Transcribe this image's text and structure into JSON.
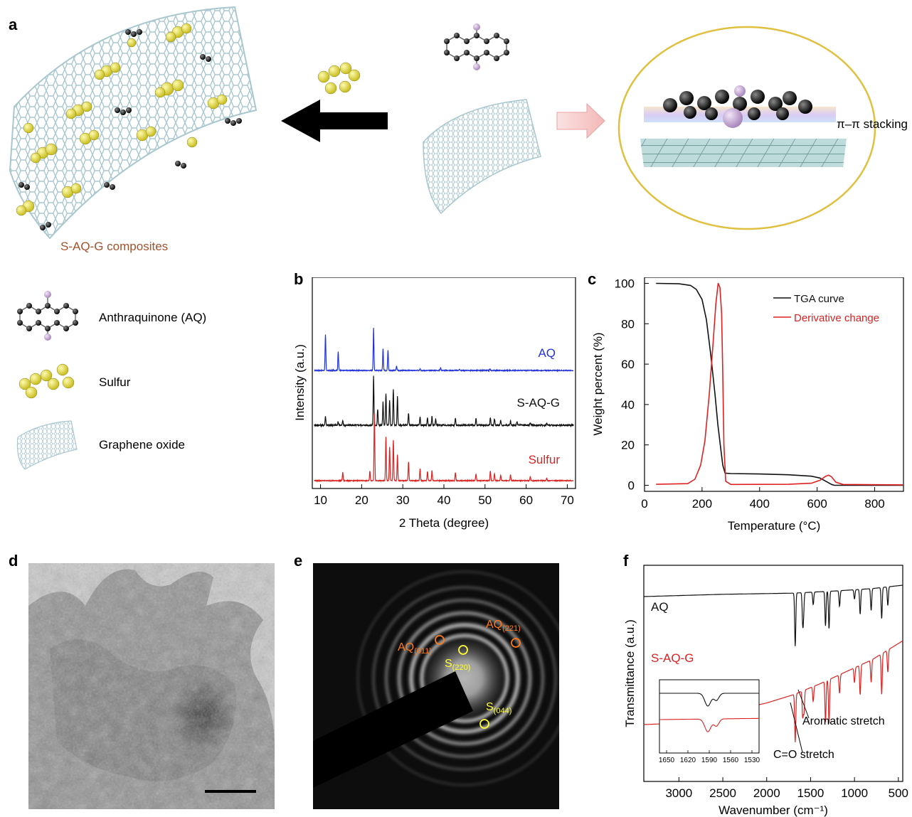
{
  "panel_letters": {
    "a": "a",
    "b": "b",
    "c": "c",
    "d": "d",
    "e": "e",
    "f": "f"
  },
  "panel_a": {
    "composite_label": "S-AQ-G composites",
    "stacking_label": "π–π stacking",
    "legend": [
      {
        "icon": "anthraquinone-molecule-icon",
        "label": "Anthraquinone (AQ)"
      },
      {
        "icon": "sulfur-molecule-icon",
        "label": "Sulfur"
      },
      {
        "icon": "graphene-oxide-sheet-icon",
        "label": "Graphene oxide"
      }
    ],
    "colors": {
      "sulfur": "#e8e04a",
      "carbon": "#1a1a1a",
      "oxygen": "#c9a8d8",
      "graphene": "#a9c7cf",
      "composite_label": "#a0522d",
      "ellipse": "#e0c040"
    }
  },
  "chart_data": [
    {
      "id": "b",
      "type": "line",
      "title": "",
      "xlabel": "2 Theta (degree)",
      "ylabel": "Intensity (a.u.)",
      "xlim": [
        8,
        72
      ],
      "xticks": [
        10,
        20,
        30,
        40,
        50,
        60,
        70
      ],
      "series": [
        {
          "name": "AQ",
          "color": "#2233dd",
          "peaks": [
            [
              11.2,
              50
            ],
            [
              14.3,
              26
            ],
            [
              22.9,
              60
            ],
            [
              25.2,
              30
            ],
            [
              26.4,
              28
            ],
            [
              28.5,
              6
            ],
            [
              34.2,
              3
            ],
            [
              39.2,
              4
            ],
            [
              43.8,
              2
            ],
            [
              51.2,
              2
            ]
          ]
        },
        {
          "name": "S-AQ-G",
          "color": "#111111",
          "peaks": [
            [
              11.2,
              25
            ],
            [
              14.3,
              10
            ],
            [
              15.4,
              12
            ],
            [
              22.9,
              140
            ],
            [
              23.9,
              45
            ],
            [
              25.2,
              65
            ],
            [
              25.9,
              90
            ],
            [
              26.8,
              70
            ],
            [
              27.7,
              100
            ],
            [
              28.7,
              80
            ],
            [
              31.4,
              35
            ],
            [
              34.2,
              25
            ],
            [
              36.0,
              20
            ],
            [
              37.1,
              25
            ],
            [
              38.0,
              18
            ],
            [
              42.8,
              20
            ],
            [
              47.8,
              18
            ],
            [
              51.3,
              22
            ],
            [
              52.3,
              18
            ],
            [
              53.8,
              14
            ],
            [
              56.2,
              12
            ],
            [
              57.8,
              10
            ],
            [
              61.0,
              8
            ],
            [
              65.0,
              6
            ]
          ]
        },
        {
          "name": "Sulfur",
          "color": "#dd2222",
          "peaks": [
            [
              15.4,
              12
            ],
            [
              22.0,
              14
            ],
            [
              23.1,
              100
            ],
            [
              25.9,
              65
            ],
            [
              26.8,
              50
            ],
            [
              27.7,
              60
            ],
            [
              28.7,
              38
            ],
            [
              31.4,
              28
            ],
            [
              34.2,
              18
            ],
            [
              36.0,
              14
            ],
            [
              37.1,
              15
            ],
            [
              42.8,
              12
            ],
            [
              47.8,
              10
            ],
            [
              51.3,
              14
            ],
            [
              52.3,
              10
            ],
            [
              53.8,
              8
            ],
            [
              56.2,
              9
            ],
            [
              61.0,
              6
            ],
            [
              65.0,
              4
            ]
          ]
        }
      ]
    },
    {
      "id": "c",
      "type": "line",
      "title": "",
      "xlabel": "Temperature (°C)",
      "ylabel": "Weight percent (%)",
      "xlim": [
        0,
        900
      ],
      "ylim": [
        -3,
        103
      ],
      "xticks": [
        0,
        200,
        400,
        600,
        800
      ],
      "yticks": [
        0,
        20,
        40,
        60,
        80,
        100
      ],
      "legend_position": "top-right",
      "series": [
        {
          "name": "TGA curve",
          "color": "#111111",
          "x": [
            40,
            120,
            160,
            180,
            200,
            215,
            230,
            245,
            255,
            265,
            272,
            280,
            300,
            400,
            500,
            580,
            610,
            630,
            650,
            660,
            900
          ],
          "y": [
            100,
            99.8,
            99,
            97,
            92,
            82,
            65,
            45,
            30,
            18,
            10,
            6,
            5.8,
            5.6,
            5.2,
            4.5,
            3.6,
            2.0,
            0.4,
            0,
            0
          ]
        },
        {
          "name": "Derivative change",
          "color": "#dd2222",
          "x": [
            40,
            150,
            175,
            195,
            210,
            225,
            238,
            248,
            256,
            262,
            268,
            272,
            276,
            282,
            300,
            500,
            580,
            610,
            630,
            640,
            650,
            665,
            690,
            900
          ],
          "y": [
            0.5,
            0.8,
            3,
            10,
            22,
            45,
            70,
            90,
            100,
            98,
            85,
            55,
            20,
            2,
            0.4,
            0.5,
            1,
            2.5,
            4.5,
            5,
            4.2,
            1.5,
            0.4,
            0.2
          ]
        }
      ]
    },
    {
      "id": "f",
      "type": "line",
      "title": "",
      "xlabel": "Wavenumber (cm⁻¹)",
      "ylabel": "Transmittance (a.u.)",
      "xlim": [
        3400,
        450
      ],
      "x_reversed": true,
      "xticks": [
        3000,
        2500,
        2000,
        1500,
        1000,
        500
      ],
      "series": [
        {
          "name": "AQ",
          "color": "#111111",
          "base": [
            [
              3400,
              0.82
            ],
            [
              2500,
              0.84
            ],
            [
              1700,
              0.85
            ],
            [
              1200,
              0.87
            ],
            [
              800,
              0.89
            ],
            [
              450,
              0.92
            ]
          ],
          "dips": [
            [
              1675,
              0.85
            ],
            [
              1590,
              0.45
            ],
            [
              1580,
              0.3
            ],
            [
              1470,
              0.2
            ],
            [
              1330,
              0.55
            ],
            [
              1290,
              0.6
            ],
            [
              1170,
              0.25
            ],
            [
              1000,
              0.15
            ],
            [
              935,
              0.4
            ],
            [
              810,
              0.35
            ],
            [
              690,
              0.5
            ],
            [
              620,
              0.3
            ]
          ]
        },
        {
          "name": "S-AQ-G",
          "color": "#dd2222",
          "base": [
            [
              3400,
              0.36
            ],
            [
              3000,
              0.37
            ],
            [
              2700,
              0.4
            ],
            [
              2400,
              0.46
            ],
            [
              2000,
              0.52
            ],
            [
              1700,
              0.58
            ],
            [
              1400,
              0.66
            ],
            [
              1100,
              0.75
            ],
            [
              800,
              0.84
            ],
            [
              600,
              0.92
            ],
            [
              450,
              0.98
            ]
          ],
          "dips": [
            [
              1675,
              0.65
            ],
            [
              1590,
              0.35
            ],
            [
              1575,
              0.3
            ],
            [
              1470,
              0.2
            ],
            [
              1330,
              0.55
            ],
            [
              1290,
              0.6
            ],
            [
              1170,
              0.25
            ],
            [
              1000,
              0.2
            ],
            [
              935,
              0.4
            ],
            [
              810,
              0.3
            ],
            [
              690,
              0.55
            ],
            [
              620,
              0.3
            ]
          ]
        }
      ],
      "annotations": [
        "C=O stretch",
        "Aromatic stretch"
      ],
      "inset": {
        "xlim": [
          1660,
          1520
        ],
        "xticks": [
          1650,
          1620,
          1590,
          1560,
          1530
        ]
      }
    }
  ],
  "panel_e": {
    "labels": [
      {
        "text": "AQ",
        "sub": "(221)",
        "color": "#ff7a1a"
      },
      {
        "text": "AQ",
        "sub": "(011)",
        "color": "#ff7a1a"
      },
      {
        "text": "S",
        "sub": "(220)",
        "color": "#ffff33"
      },
      {
        "text": "S",
        "sub": "(044)",
        "color": "#ffff33"
      }
    ]
  }
}
